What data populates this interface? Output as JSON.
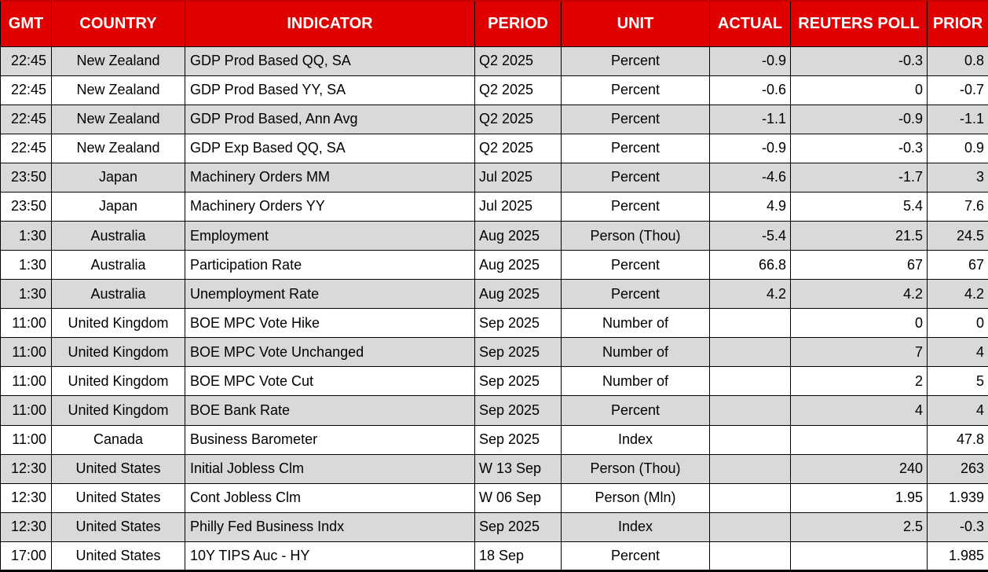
{
  "table": {
    "colors": {
      "header_bg": "#E00000",
      "header_text": "#FFFFFF",
      "alt_row_bg": "#D9D9D9",
      "row_bg": "#FFFFFF",
      "border": "#000000",
      "text": "#000000"
    },
    "columns": [
      {
        "key": "gmt",
        "label": "GMT"
      },
      {
        "key": "country",
        "label": "COUNTRY"
      },
      {
        "key": "indicator",
        "label": "INDICATOR"
      },
      {
        "key": "period",
        "label": "PERIOD"
      },
      {
        "key": "unit",
        "label": "UNIT"
      },
      {
        "key": "actual",
        "label": "ACTUAL"
      },
      {
        "key": "poll",
        "label": "REUTERS POLL"
      },
      {
        "key": "prior",
        "label": "PRIOR"
      }
    ],
    "rows": [
      {
        "gmt": "22:45",
        "country": "New Zealand",
        "indicator": "GDP Prod Based QQ, SA",
        "period": "Q2 2025",
        "unit": "Percent",
        "actual": "-0.9",
        "poll": "-0.3",
        "prior": "0.8"
      },
      {
        "gmt": "22:45",
        "country": "New Zealand",
        "indicator": "GDP Prod Based YY, SA",
        "period": "Q2 2025",
        "unit": "Percent",
        "actual": "-0.6",
        "poll": "0",
        "prior": "-0.7"
      },
      {
        "gmt": "22:45",
        "country": "New Zealand",
        "indicator": "GDP Prod Based, Ann Avg",
        "period": "Q2 2025",
        "unit": "Percent",
        "actual": "-1.1",
        "poll": "-0.9",
        "prior": "-1.1"
      },
      {
        "gmt": "22:45",
        "country": "New Zealand",
        "indicator": "GDP Exp Based QQ, SA",
        "period": "Q2 2025",
        "unit": "Percent",
        "actual": "-0.9",
        "poll": "-0.3",
        "prior": "0.9"
      },
      {
        "gmt": "23:50",
        "country": "Japan",
        "indicator": "Machinery Orders MM",
        "period": "Jul 2025",
        "unit": "Percent",
        "actual": "-4.6",
        "poll": "-1.7",
        "prior": "3"
      },
      {
        "gmt": "23:50",
        "country": "Japan",
        "indicator": "Machinery Orders YY",
        "period": "Jul 2025",
        "unit": "Percent",
        "actual": "4.9",
        "poll": "5.4",
        "prior": "7.6"
      },
      {
        "gmt": "1:30",
        "country": "Australia",
        "indicator": "Employment",
        "period": "Aug 2025",
        "unit": "Person (Thou)",
        "actual": "-5.4",
        "poll": "21.5",
        "prior": "24.5"
      },
      {
        "gmt": "1:30",
        "country": "Australia",
        "indicator": "Participation Rate",
        "period": "Aug 2025",
        "unit": "Percent",
        "actual": "66.8",
        "poll": "67",
        "prior": "67"
      },
      {
        "gmt": "1:30",
        "country": "Australia",
        "indicator": "Unemployment Rate",
        "period": "Aug 2025",
        "unit": "Percent",
        "actual": "4.2",
        "poll": "4.2",
        "prior": "4.2"
      },
      {
        "gmt": "11:00",
        "country": "United Kingdom",
        "indicator": "BOE MPC Vote Hike",
        "period": "Sep 2025",
        "unit": "Number of",
        "actual": "",
        "poll": "0",
        "prior": "0"
      },
      {
        "gmt": "11:00",
        "country": "United Kingdom",
        "indicator": "BOE MPC Vote Unchanged",
        "period": "Sep 2025",
        "unit": "Number of",
        "actual": "",
        "poll": "7",
        "prior": "4"
      },
      {
        "gmt": "11:00",
        "country": "United Kingdom",
        "indicator": "BOE MPC Vote Cut",
        "period": "Sep 2025",
        "unit": "Number of",
        "actual": "",
        "poll": "2",
        "prior": "5"
      },
      {
        "gmt": "11:00",
        "country": "United Kingdom",
        "indicator": "BOE Bank Rate",
        "period": "Sep 2025",
        "unit": "Percent",
        "actual": "",
        "poll": "4",
        "prior": "4"
      },
      {
        "gmt": "11:00",
        "country": "Canada",
        "indicator": "Business Barometer",
        "period": "Sep 2025",
        "unit": "Index",
        "actual": "",
        "poll": "",
        "prior": "47.8"
      },
      {
        "gmt": "12:30",
        "country": "United States",
        "indicator": "Initial Jobless Clm",
        "period": "W 13 Sep",
        "unit": "Person (Thou)",
        "actual": "",
        "poll": "240",
        "prior": "263"
      },
      {
        "gmt": "12:30",
        "country": "United States",
        "indicator": "Cont Jobless Clm",
        "period": "W 06 Sep",
        "unit": "Person (Mln)",
        "actual": "",
        "poll": "1.95",
        "prior": "1.939"
      },
      {
        "gmt": "12:30",
        "country": "United States",
        "indicator": "Philly Fed Business Indx",
        "period": "Sep 2025",
        "unit": "Index",
        "actual": "",
        "poll": "2.5",
        "prior": "-0.3"
      },
      {
        "gmt": "17:00",
        "country": "United States",
        "indicator": "10Y TIPS Auc - HY",
        "period": "18 Sep",
        "unit": "Percent",
        "actual": "",
        "poll": "",
        "prior": "1.985"
      }
    ]
  }
}
